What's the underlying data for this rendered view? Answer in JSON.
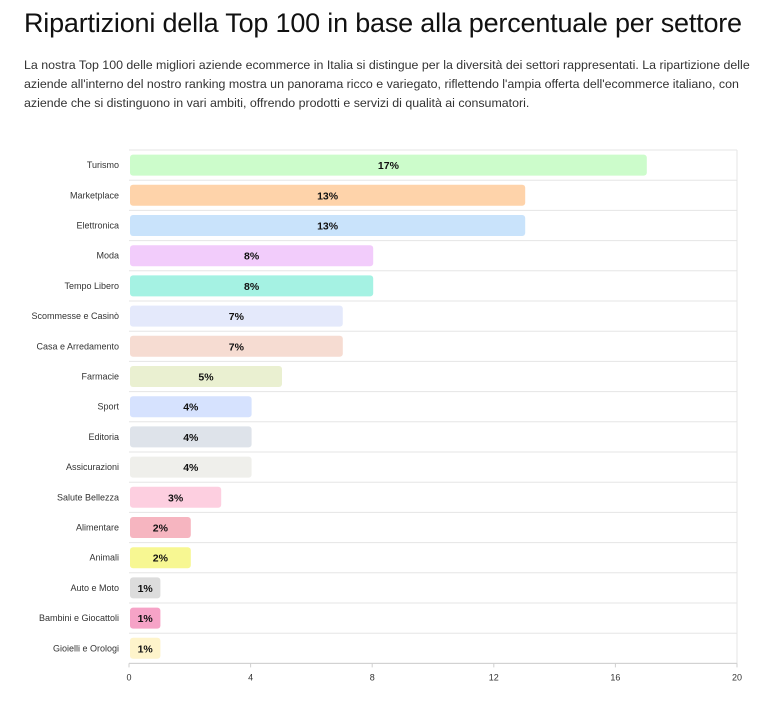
{
  "header": {
    "title": "Ripartizioni della Top 100 in base alla percentuale per settore",
    "description": "La nostra Top 100 delle migliori aziende ecommerce in Italia si distingue per la diversità dei settori rappresentati. La ripartizione delle aziende all'interno del nostro ranking mostra un panorama ricco e variegato, riflettendo l'ampia offerta dell'ecommerce italiano, con aziende che si distinguono in vari ambiti, offrendo prodotti e servizi di qualità ai consumatori."
  },
  "chart_data": {
    "type": "bar",
    "orientation": "horizontal",
    "categories": [
      "Turismo",
      "Marketplace",
      "Elettronica",
      "Moda",
      "Tempo Libero",
      "Scommesse e Casinò",
      "Casa e Arredamento",
      "Farmacie",
      "Sport",
      "Editoria",
      "Assicurazioni",
      "Salute Bellezza",
      "Alimentare",
      "Animali",
      "Auto e Moto",
      "Bambini e Giocattoli",
      "Gioielli e Orologi"
    ],
    "values": [
      17,
      13,
      13,
      8,
      8,
      7,
      7,
      5,
      4,
      4,
      4,
      3,
      2,
      2,
      1,
      1,
      1
    ],
    "value_labels": [
      "17%",
      "13%",
      "13%",
      "8%",
      "8%",
      "7%",
      "7%",
      "5%",
      "4%",
      "4%",
      "4%",
      "3%",
      "2%",
      "2%",
      "1%",
      "1%",
      "1%"
    ],
    "colors": [
      "#ccfccb",
      "#fed3aa",
      "#c9e3fb",
      "#f2ccfb",
      "#a5f2e3",
      "#e4e9fb",
      "#f6dcd2",
      "#eaf0d1",
      "#d6e2fe",
      "#dee3ea",
      "#efefeb",
      "#fdcfe0",
      "#f6b5c0",
      "#f7f792",
      "#dcdcdc",
      "#f6a3c7",
      "#fef4cb"
    ],
    "xlim": [
      0,
      20
    ],
    "xticks": [
      "0",
      "4",
      "8",
      "12",
      "16",
      "20"
    ],
    "grid": "horizontal lines between rows",
    "legend": "none"
  }
}
